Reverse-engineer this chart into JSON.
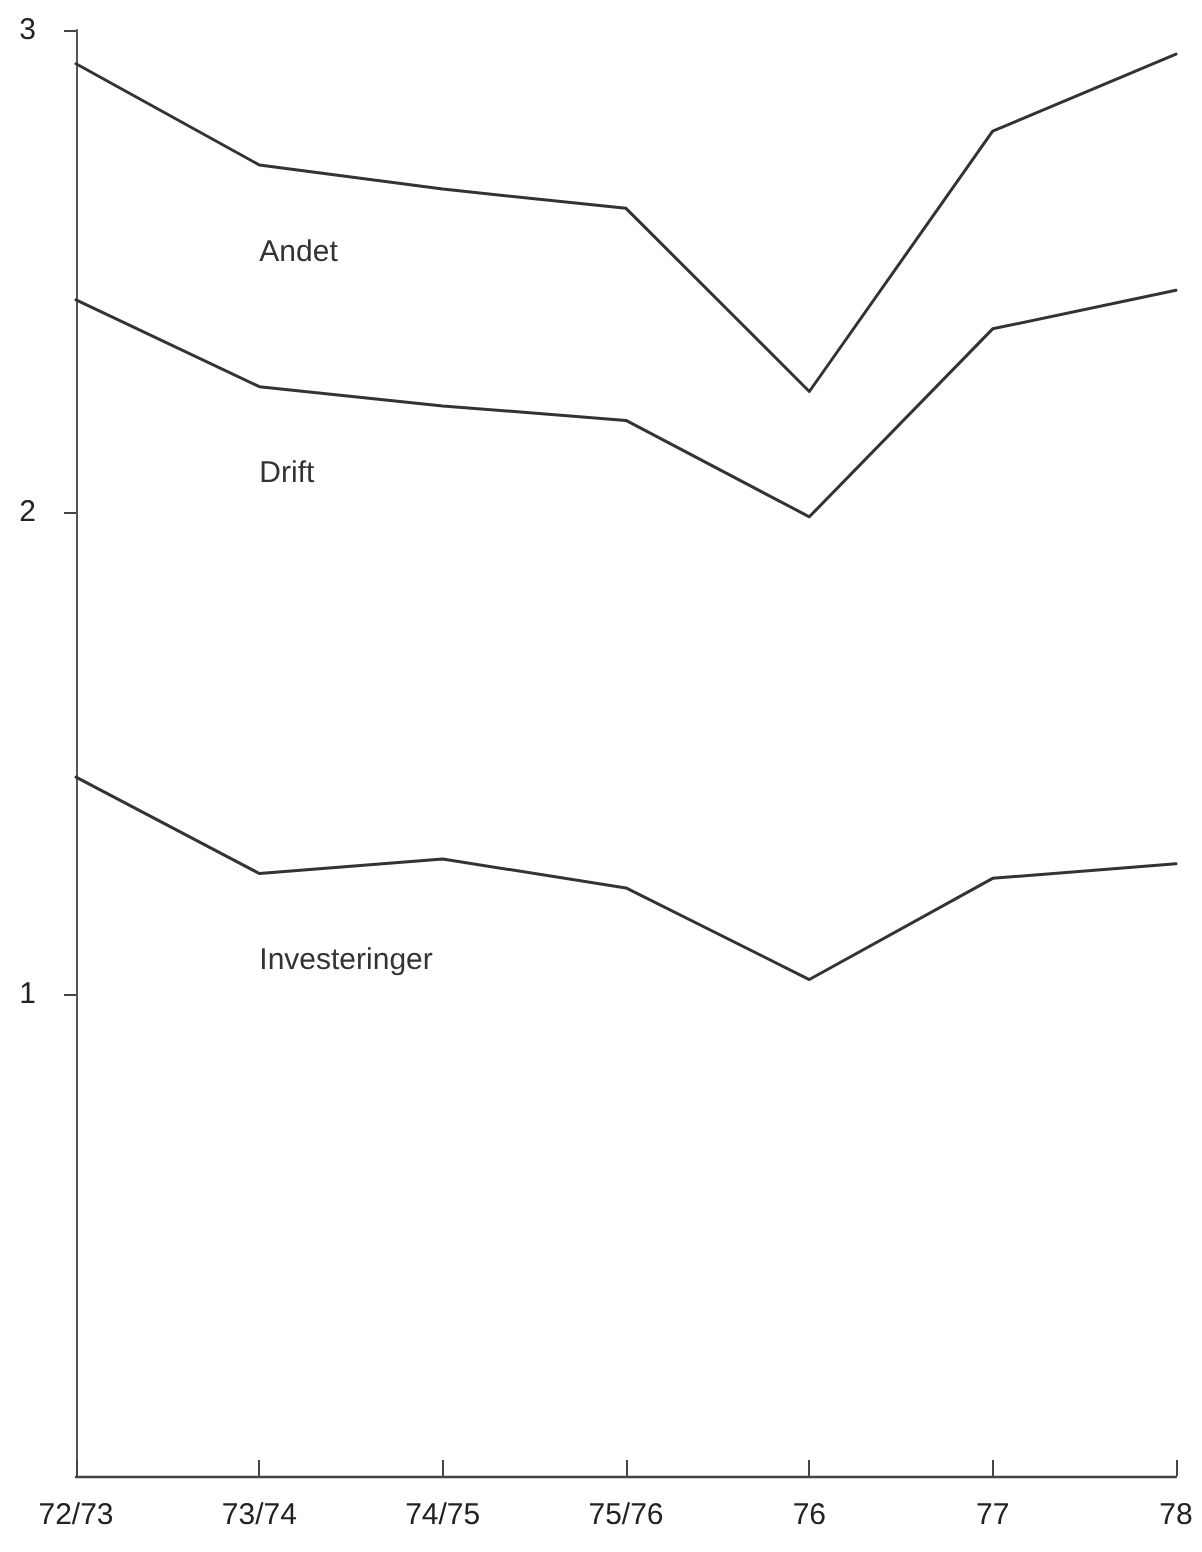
{
  "chart_data": {
    "type": "line",
    "categories": [
      "72/73",
      "73/74",
      "74/75",
      "75/76",
      "76",
      "77",
      "78"
    ],
    "series": [
      {
        "name": "Investeringer",
        "color": "#333333",
        "values": [
          1.45,
          1.25,
          1.28,
          1.22,
          1.03,
          1.24,
          1.27
        ]
      },
      {
        "name": "Drift",
        "color": "#333333",
        "values": [
          2.44,
          2.26,
          2.22,
          2.19,
          1.99,
          2.38,
          2.46
        ]
      },
      {
        "name": "Andet",
        "color": "#333333",
        "values": [
          2.93,
          2.72,
          2.67,
          2.63,
          2.25,
          2.79,
          2.95
        ]
      }
    ],
    "ylim": [
      0,
      3
    ],
    "yticks": [
      1,
      2,
      3
    ],
    "grid": false,
    "legend": false,
    "marker": "none",
    "line_style": "solid"
  }
}
